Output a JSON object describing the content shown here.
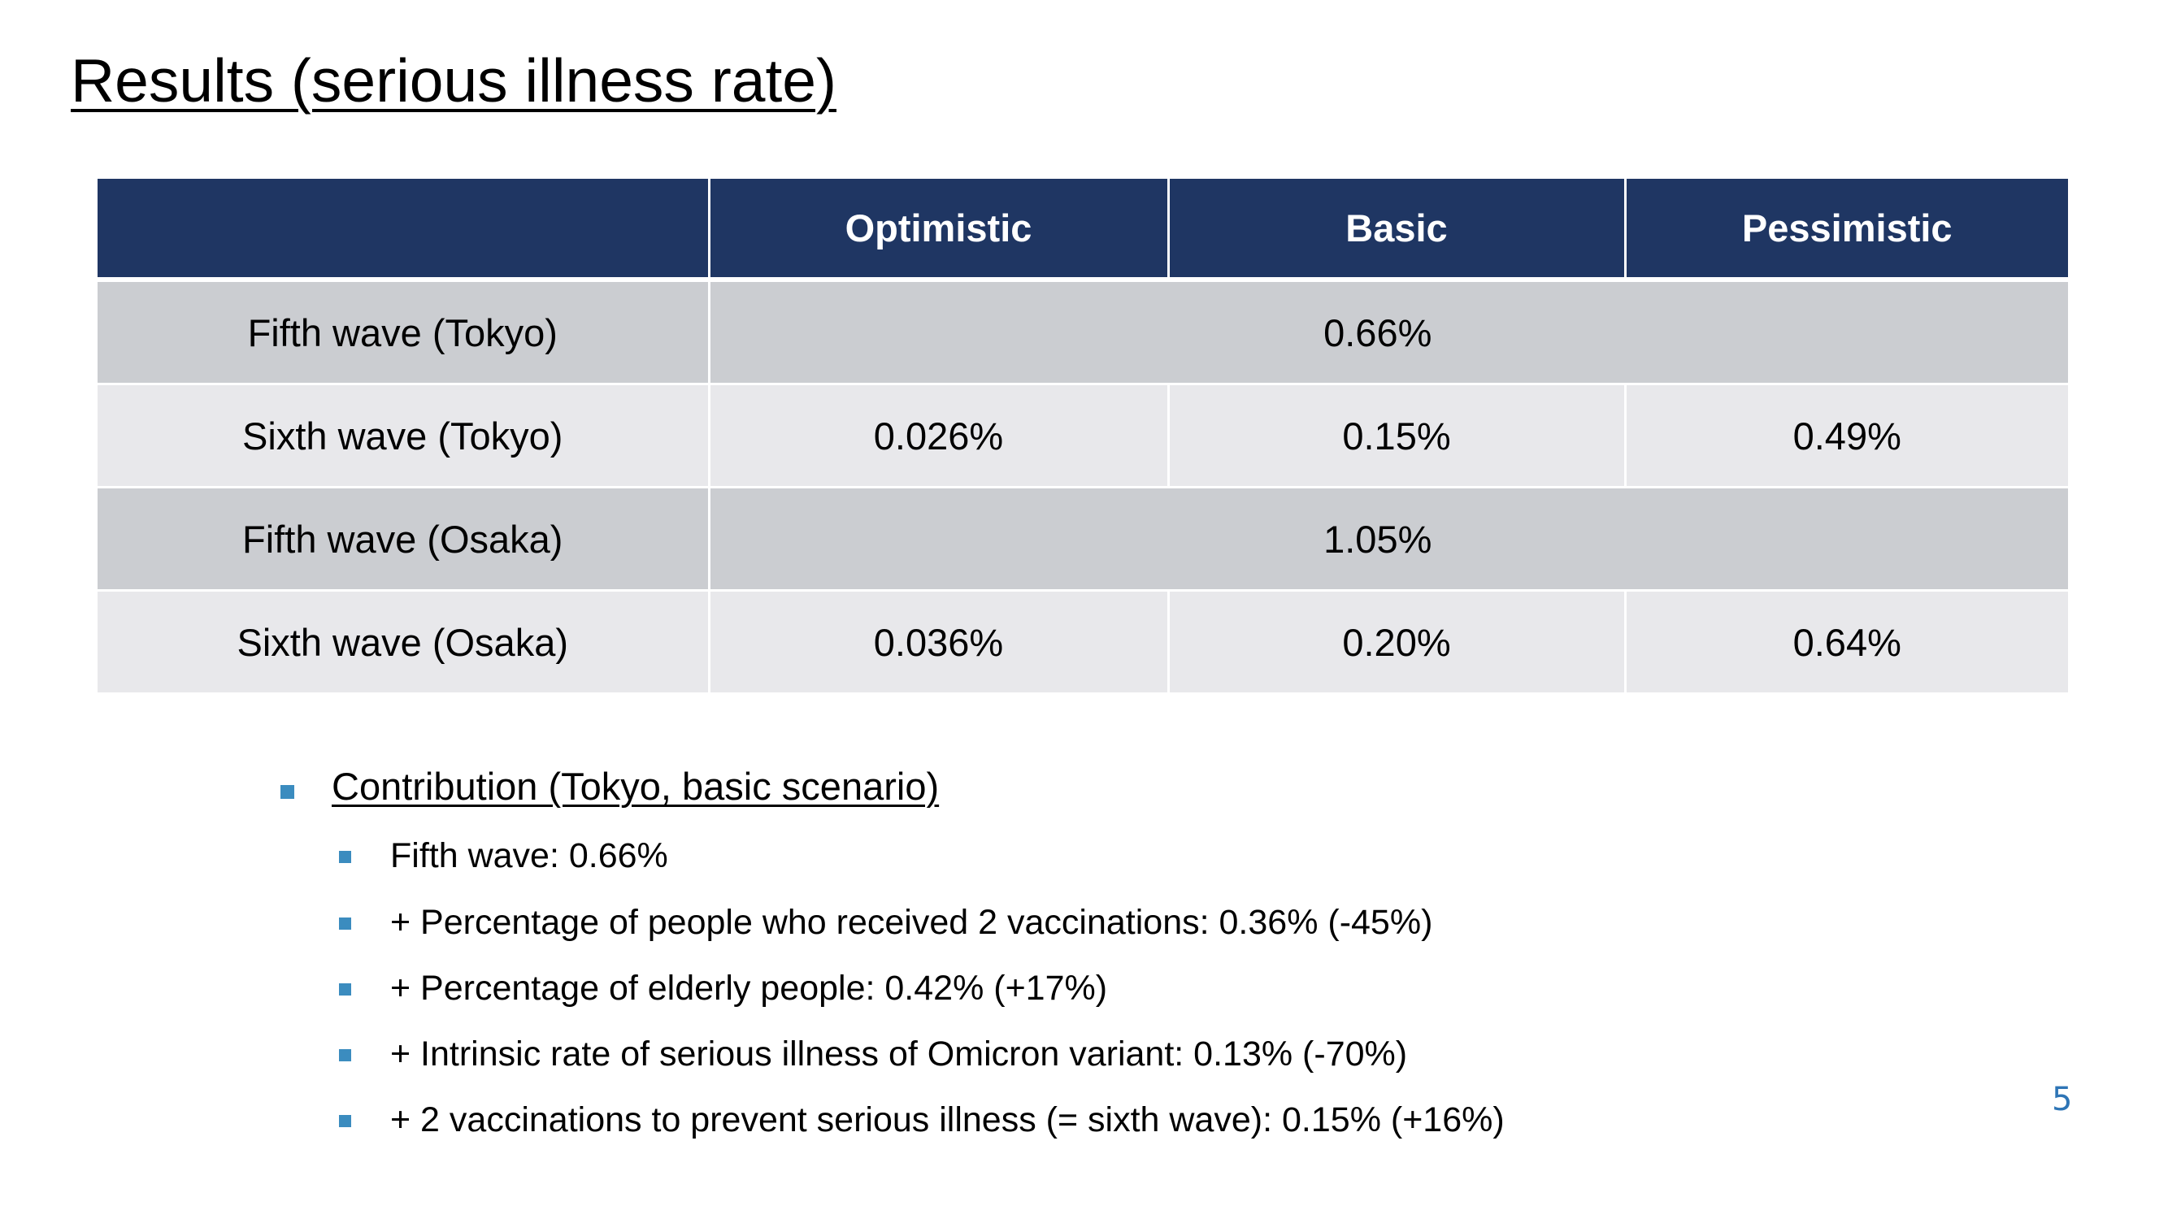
{
  "title": "Results (serious illness rate)",
  "table": {
    "headers": [
      "",
      "Optimistic",
      "Basic",
      "Pessimistic"
    ],
    "rows": [
      {
        "label": "Fifth wave (Tokyo)",
        "merged_value": "0.66%"
      },
      {
        "label": "Sixth wave (Tokyo)",
        "optimistic": "0.026%",
        "basic": "0.15%",
        "pessimistic": "0.49%"
      },
      {
        "label": "Fifth wave (Osaka)",
        "merged_value": "1.05%"
      },
      {
        "label": "Sixth wave (Osaka)",
        "optimistic": "0.036%",
        "basic": "0.20%",
        "pessimistic": "0.64%"
      }
    ]
  },
  "contribution": {
    "heading": "Contribution (Tokyo, basic scenario)",
    "items": [
      "Fifth wave: 0.66%",
      "+ Percentage of people who received 2 vaccinations: 0.36% (-45%)",
      "+ Percentage of elderly people: 0.42% (+17%)",
      "+ Intrinsic rate of serious illness of Omicron variant: 0.13% (-70%)",
      "+ 2 vaccinations to prevent serious illness (= sixth wave): 0.15% (+16%)"
    ]
  },
  "page_number": "5",
  "colors": {
    "header_bg": "#1f3663",
    "row_dark": "#cbcdd1",
    "row_light": "#e8e8eb",
    "bullet": "#3b8cbf",
    "page_number": "#2e75b6"
  }
}
